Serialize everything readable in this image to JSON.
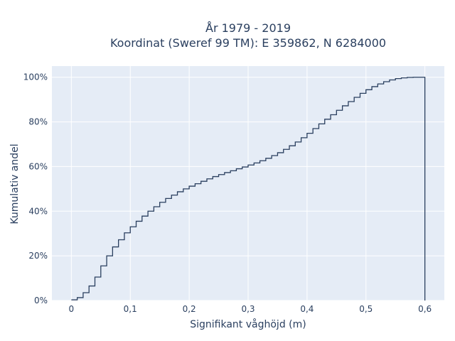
{
  "chart_data": {
    "type": "line",
    "subtype": "step-ecdf",
    "title_lines": [
      "År 1979 - 2019",
      "Koordinat (Sweref 99 TM): E 359862, N 6284000"
    ],
    "xlabel": "Signifikant våghöjd (m)",
    "ylabel": "Kumulativ andel",
    "xlim": [
      -0.033,
      0.633
    ],
    "ylim": [
      0,
      1.05
    ],
    "x_ticks": [
      {
        "value": 0,
        "label": "0"
      },
      {
        "value": 0.1,
        "label": "0,1"
      },
      {
        "value": 0.2,
        "label": "0,2"
      },
      {
        "value": 0.3,
        "label": "0,3"
      },
      {
        "value": 0.4,
        "label": "0,4"
      },
      {
        "value": 0.5,
        "label": "0,5"
      },
      {
        "value": 0.6,
        "label": "0,6"
      }
    ],
    "y_ticks": [
      {
        "value": 0,
        "label": "0%"
      },
      {
        "value": 0.2,
        "label": "20%"
      },
      {
        "value": 0.4,
        "label": "40%"
      },
      {
        "value": 0.6,
        "label": "60%"
      },
      {
        "value": 0.8,
        "label": "80%"
      },
      {
        "value": 1.0,
        "label": "100%"
      }
    ],
    "grid": true,
    "background": "#e5ecf6",
    "line_color": "#2a3f5f",
    "series": [
      {
        "x": [
          0,
          0.01,
          0.02,
          0.03,
          0.04,
          0.05,
          0.06,
          0.07,
          0.08,
          0.09,
          0.1,
          0.11,
          0.12,
          0.13,
          0.14,
          0.15,
          0.16,
          0.17,
          0.18,
          0.19,
          0.2,
          0.21,
          0.22,
          0.23,
          0.24,
          0.25,
          0.26,
          0.27,
          0.28,
          0.29,
          0.3,
          0.31,
          0.32,
          0.33,
          0.34,
          0.35,
          0.36,
          0.37,
          0.38,
          0.39,
          0.4,
          0.41,
          0.42,
          0.43,
          0.44,
          0.45,
          0.46,
          0.47,
          0.48,
          0.49,
          0.5,
          0.51,
          0.52,
          0.53,
          0.54,
          0.55,
          0.56,
          0.57,
          0.58,
          0.59,
          0.6
        ],
        "y": [
          0.003,
          0.013,
          0.035,
          0.065,
          0.105,
          0.155,
          0.2,
          0.24,
          0.272,
          0.303,
          0.33,
          0.355,
          0.378,
          0.4,
          0.42,
          0.44,
          0.457,
          0.472,
          0.487,
          0.5,
          0.512,
          0.523,
          0.534,
          0.545,
          0.555,
          0.564,
          0.573,
          0.581,
          0.59,
          0.598,
          0.607,
          0.616,
          0.626,
          0.637,
          0.649,
          0.662,
          0.677,
          0.693,
          0.71,
          0.729,
          0.749,
          0.77,
          0.791,
          0.812,
          0.832,
          0.852,
          0.872,
          0.891,
          0.91,
          0.928,
          0.944,
          0.958,
          0.97,
          0.98,
          0.988,
          0.994,
          0.997,
          0.999,
          1.0,
          1.0,
          1.0
        ]
      }
    ]
  }
}
